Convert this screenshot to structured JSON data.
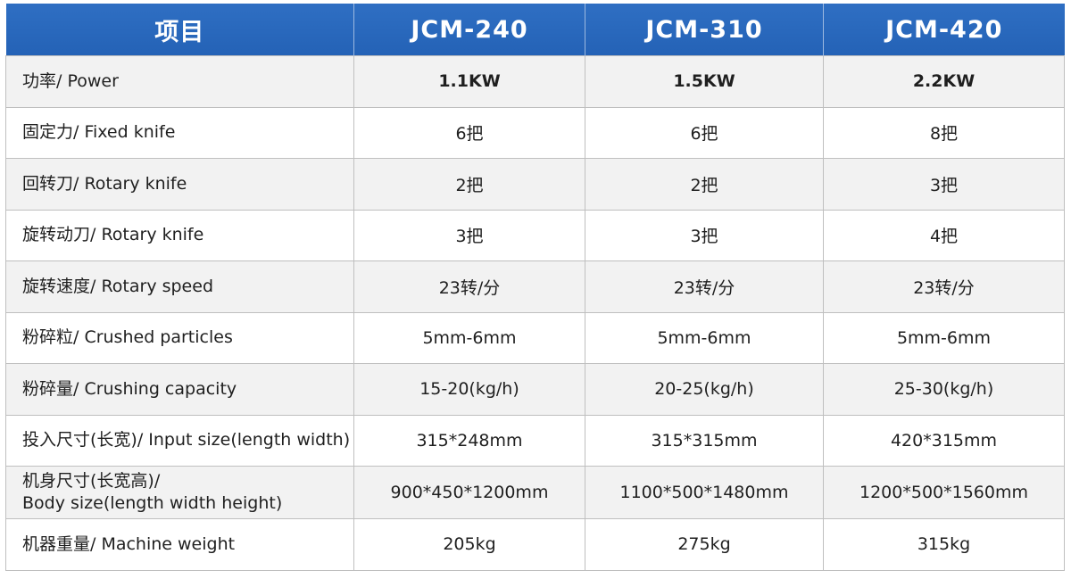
{
  "header": {
    "item": "项目",
    "models": [
      "JCM-240",
      "JCM-310",
      "JCM-420"
    ]
  },
  "rows": [
    {
      "label": "功率/ Power",
      "values": [
        "1.1KW",
        "1.5KW",
        "2.2KW"
      ]
    },
    {
      "label": "固定力/ Fixed knife",
      "values": [
        "6把",
        "6把",
        "8把"
      ]
    },
    {
      "label": "回转刀/ Rotary knife",
      "values": [
        "2把",
        "2把",
        "3把"
      ]
    },
    {
      "label": "旋转动刀/ Rotary knife",
      "values": [
        "3把",
        "3把",
        "4把"
      ]
    },
    {
      "label": "旋转速度/ Rotary speed",
      "values": [
        "23转/分",
        "23转/分",
        "23转/分"
      ]
    },
    {
      "label": "粉碎粒/ Crushed particles",
      "values": [
        "5mm-6mm",
        "5mm-6mm",
        "5mm-6mm"
      ]
    },
    {
      "label": "粉碎量/ Crushing capacity",
      "values": [
        "15-20(kg/h)",
        "20-25(kg/h)",
        "25-30(kg/h)"
      ]
    },
    {
      "label": "投入尺寸(长宽)/ Input size(length width)",
      "values": [
        "315*248mm",
        "315*315mm",
        "420*315mm"
      ]
    },
    {
      "label_line1": "机身尺寸(长宽高)/",
      "label_line2": "Body size(length width height)",
      "values": [
        "900*450*1200mm",
        "1100*500*1480mm",
        "1200*500*1560mm"
      ]
    },
    {
      "label": "机器重量/ Machine weight",
      "values": [
        "205kg",
        "275kg",
        "315kg"
      ]
    }
  ],
  "colors": {
    "header_bg": "#2462b6",
    "header_text": "#ffffff",
    "row_alt": "#f2f2f2",
    "border": "#bfbfbf"
  }
}
